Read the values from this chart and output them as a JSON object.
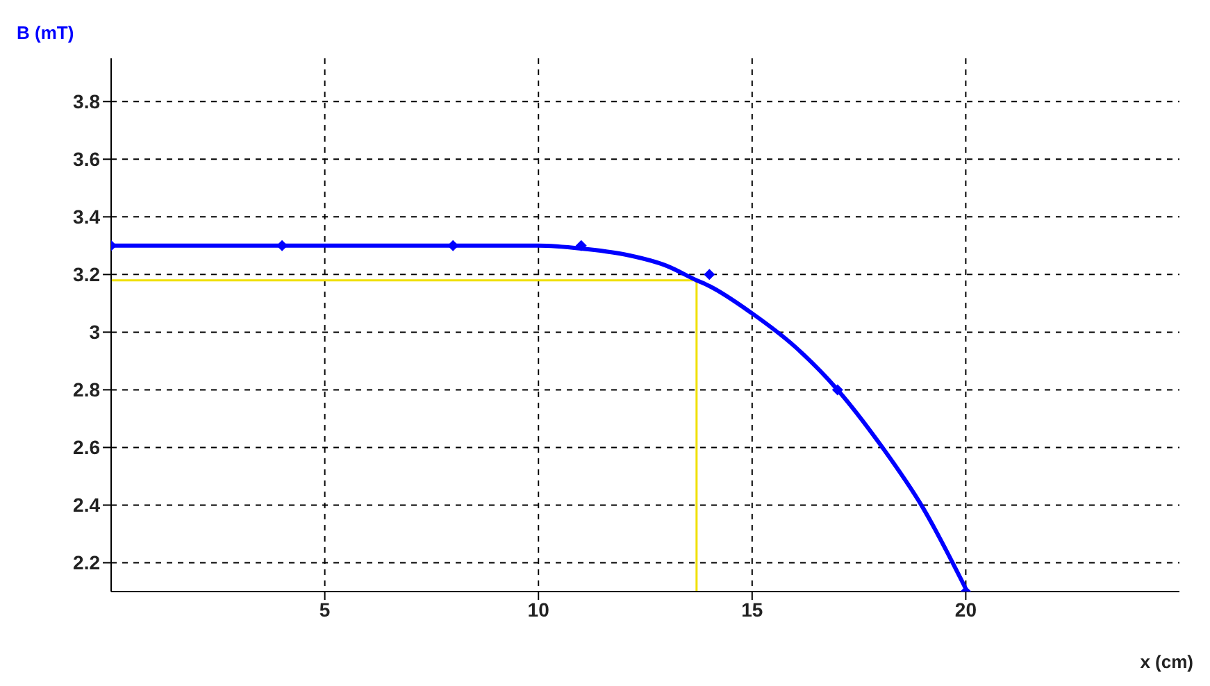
{
  "chart_data": {
    "type": "line",
    "xlabel": "x (cm)",
    "ylabel": "B (mT)",
    "xlim": [
      0,
      25
    ],
    "xticks": [
      5,
      10,
      15,
      20
    ],
    "ylim": [
      2.1,
      3.95
    ],
    "yticks": [
      2.2,
      2.4,
      2.6,
      2.8,
      {
        "value": 3,
        "label": "3"
      },
      3.2,
      3.4,
      3.6,
      3.8
    ],
    "grid": true,
    "series": [
      {
        "color": "#0000ff",
        "marker": "none",
        "x": [
          0,
          4,
          8,
          10,
          11,
          12,
          13,
          13.7,
          14,
          15,
          16,
          17,
          18,
          19,
          20
        ],
        "values": [
          3.3,
          3.3,
          3.3,
          3.3,
          3.29,
          3.27,
          3.23,
          3.18,
          3.16,
          3.065,
          2.95,
          2.8,
          2.61,
          2.39,
          2.11
        ]
      },
      {
        "type": "scatter",
        "color": "#0000ff",
        "marker": "diamond",
        "x": [
          0,
          4,
          8,
          11,
          14,
          17,
          20
        ],
        "values": [
          3.3,
          3.3,
          3.3,
          3.3,
          3.2,
          2.8,
          2.1
        ]
      }
    ],
    "ref_lines": [
      {
        "axis": "x",
        "value": 13.7,
        "color": "#f0e000"
      },
      {
        "axis": "y",
        "value": 3.18,
        "color": "#f0e000"
      }
    ]
  }
}
